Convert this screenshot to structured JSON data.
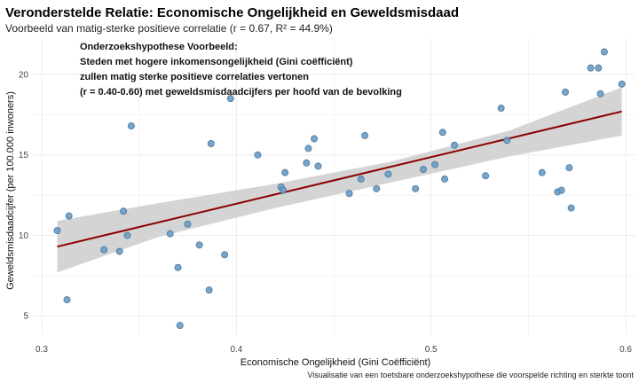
{
  "chart_data": {
    "type": "scatter",
    "title": "Veronderstelde Relatie: Economische Ongelijkheid en Geweldsmisdaad",
    "subtitle": "Voorbeeld van matig-sterke positieve correlatie (r = 0.67, R² = 44.9%)",
    "xlabel": "Economische Ongelijkheid (Gini Coëfficiënt)",
    "ylabel": "Geweldsmisdaadcijfer (per 100.000 inwoners)",
    "caption": "Visualisatie van een toetsbare onderzoekshypothese die voorspelde richting en sterkte toont",
    "annotation": [
      "Onderzoekshypothese Voorbeeld:",
      "Steden met hogere inkomensongelijkheid (Gini coëfficiënt)",
      "zullen matig sterke positieve correlaties vertonen",
      "(r = 0.40-0.60) met geweldsmisdaadcijfers per hoofd van de bevolking"
    ],
    "xlim": [
      0.295,
      0.605
    ],
    "ylim": [
      3.8,
      22.2
    ],
    "xticks": [
      0.3,
      0.4,
      0.5,
      0.6
    ],
    "yticks": [
      5,
      10,
      15,
      20
    ],
    "grid": true,
    "colors": {
      "points": "#6a9bc3",
      "point_stroke": "#4a78a0",
      "line": "#8b0000",
      "band": "#d4d4d4",
      "grid": "#ebebeb"
    },
    "trend": {
      "x": [
        0.308,
        0.598
      ],
      "y": [
        9.3,
        17.7
      ]
    },
    "band": {
      "x": [
        0.308,
        0.36,
        0.42,
        0.48,
        0.54,
        0.598
      ],
      "lower": [
        7.7,
        9.9,
        11.7,
        13.3,
        14.9,
        16.2
      ],
      "upper": [
        10.9,
        12.0,
        13.2,
        14.6,
        16.5,
        19.2
      ]
    },
    "points": [
      {
        "x": 0.308,
        "y": 10.3
      },
      {
        "x": 0.313,
        "y": 6.0
      },
      {
        "x": 0.314,
        "y": 11.2
      },
      {
        "x": 0.332,
        "y": 9.1
      },
      {
        "x": 0.34,
        "y": 9.0
      },
      {
        "x": 0.342,
        "y": 11.5
      },
      {
        "x": 0.344,
        "y": 10.0
      },
      {
        "x": 0.346,
        "y": 16.8
      },
      {
        "x": 0.366,
        "y": 10.1
      },
      {
        "x": 0.37,
        "y": 8.0
      },
      {
        "x": 0.371,
        "y": 4.4
      },
      {
        "x": 0.375,
        "y": 10.7
      },
      {
        "x": 0.381,
        "y": 9.4
      },
      {
        "x": 0.386,
        "y": 6.6
      },
      {
        "x": 0.387,
        "y": 15.7
      },
      {
        "x": 0.394,
        "y": 8.8
      },
      {
        "x": 0.397,
        "y": 18.5
      },
      {
        "x": 0.411,
        "y": 15.0
      },
      {
        "x": 0.423,
        "y": 13.0
      },
      {
        "x": 0.424,
        "y": 12.8
      },
      {
        "x": 0.425,
        "y": 13.9
      },
      {
        "x": 0.436,
        "y": 14.5
      },
      {
        "x": 0.437,
        "y": 15.4
      },
      {
        "x": 0.44,
        "y": 16.0
      },
      {
        "x": 0.442,
        "y": 14.3
      },
      {
        "x": 0.458,
        "y": 12.6
      },
      {
        "x": 0.464,
        "y": 13.5
      },
      {
        "x": 0.466,
        "y": 16.2
      },
      {
        "x": 0.472,
        "y": 12.9
      },
      {
        "x": 0.478,
        "y": 13.8
      },
      {
        "x": 0.492,
        "y": 12.9
      },
      {
        "x": 0.496,
        "y": 14.1
      },
      {
        "x": 0.502,
        "y": 14.4
      },
      {
        "x": 0.506,
        "y": 16.4
      },
      {
        "x": 0.507,
        "y": 13.5
      },
      {
        "x": 0.512,
        "y": 15.6
      },
      {
        "x": 0.528,
        "y": 13.7
      },
      {
        "x": 0.536,
        "y": 17.9
      },
      {
        "x": 0.539,
        "y": 15.9
      },
      {
        "x": 0.557,
        "y": 13.9
      },
      {
        "x": 0.565,
        "y": 12.7
      },
      {
        "x": 0.567,
        "y": 12.8
      },
      {
        "x": 0.569,
        "y": 18.9
      },
      {
        "x": 0.571,
        "y": 14.2
      },
      {
        "x": 0.572,
        "y": 11.7
      },
      {
        "x": 0.582,
        "y": 20.4
      },
      {
        "x": 0.586,
        "y": 20.4
      },
      {
        "x": 0.587,
        "y": 18.8
      },
      {
        "x": 0.589,
        "y": 21.4
      },
      {
        "x": 0.598,
        "y": 19.4
      }
    ]
  }
}
